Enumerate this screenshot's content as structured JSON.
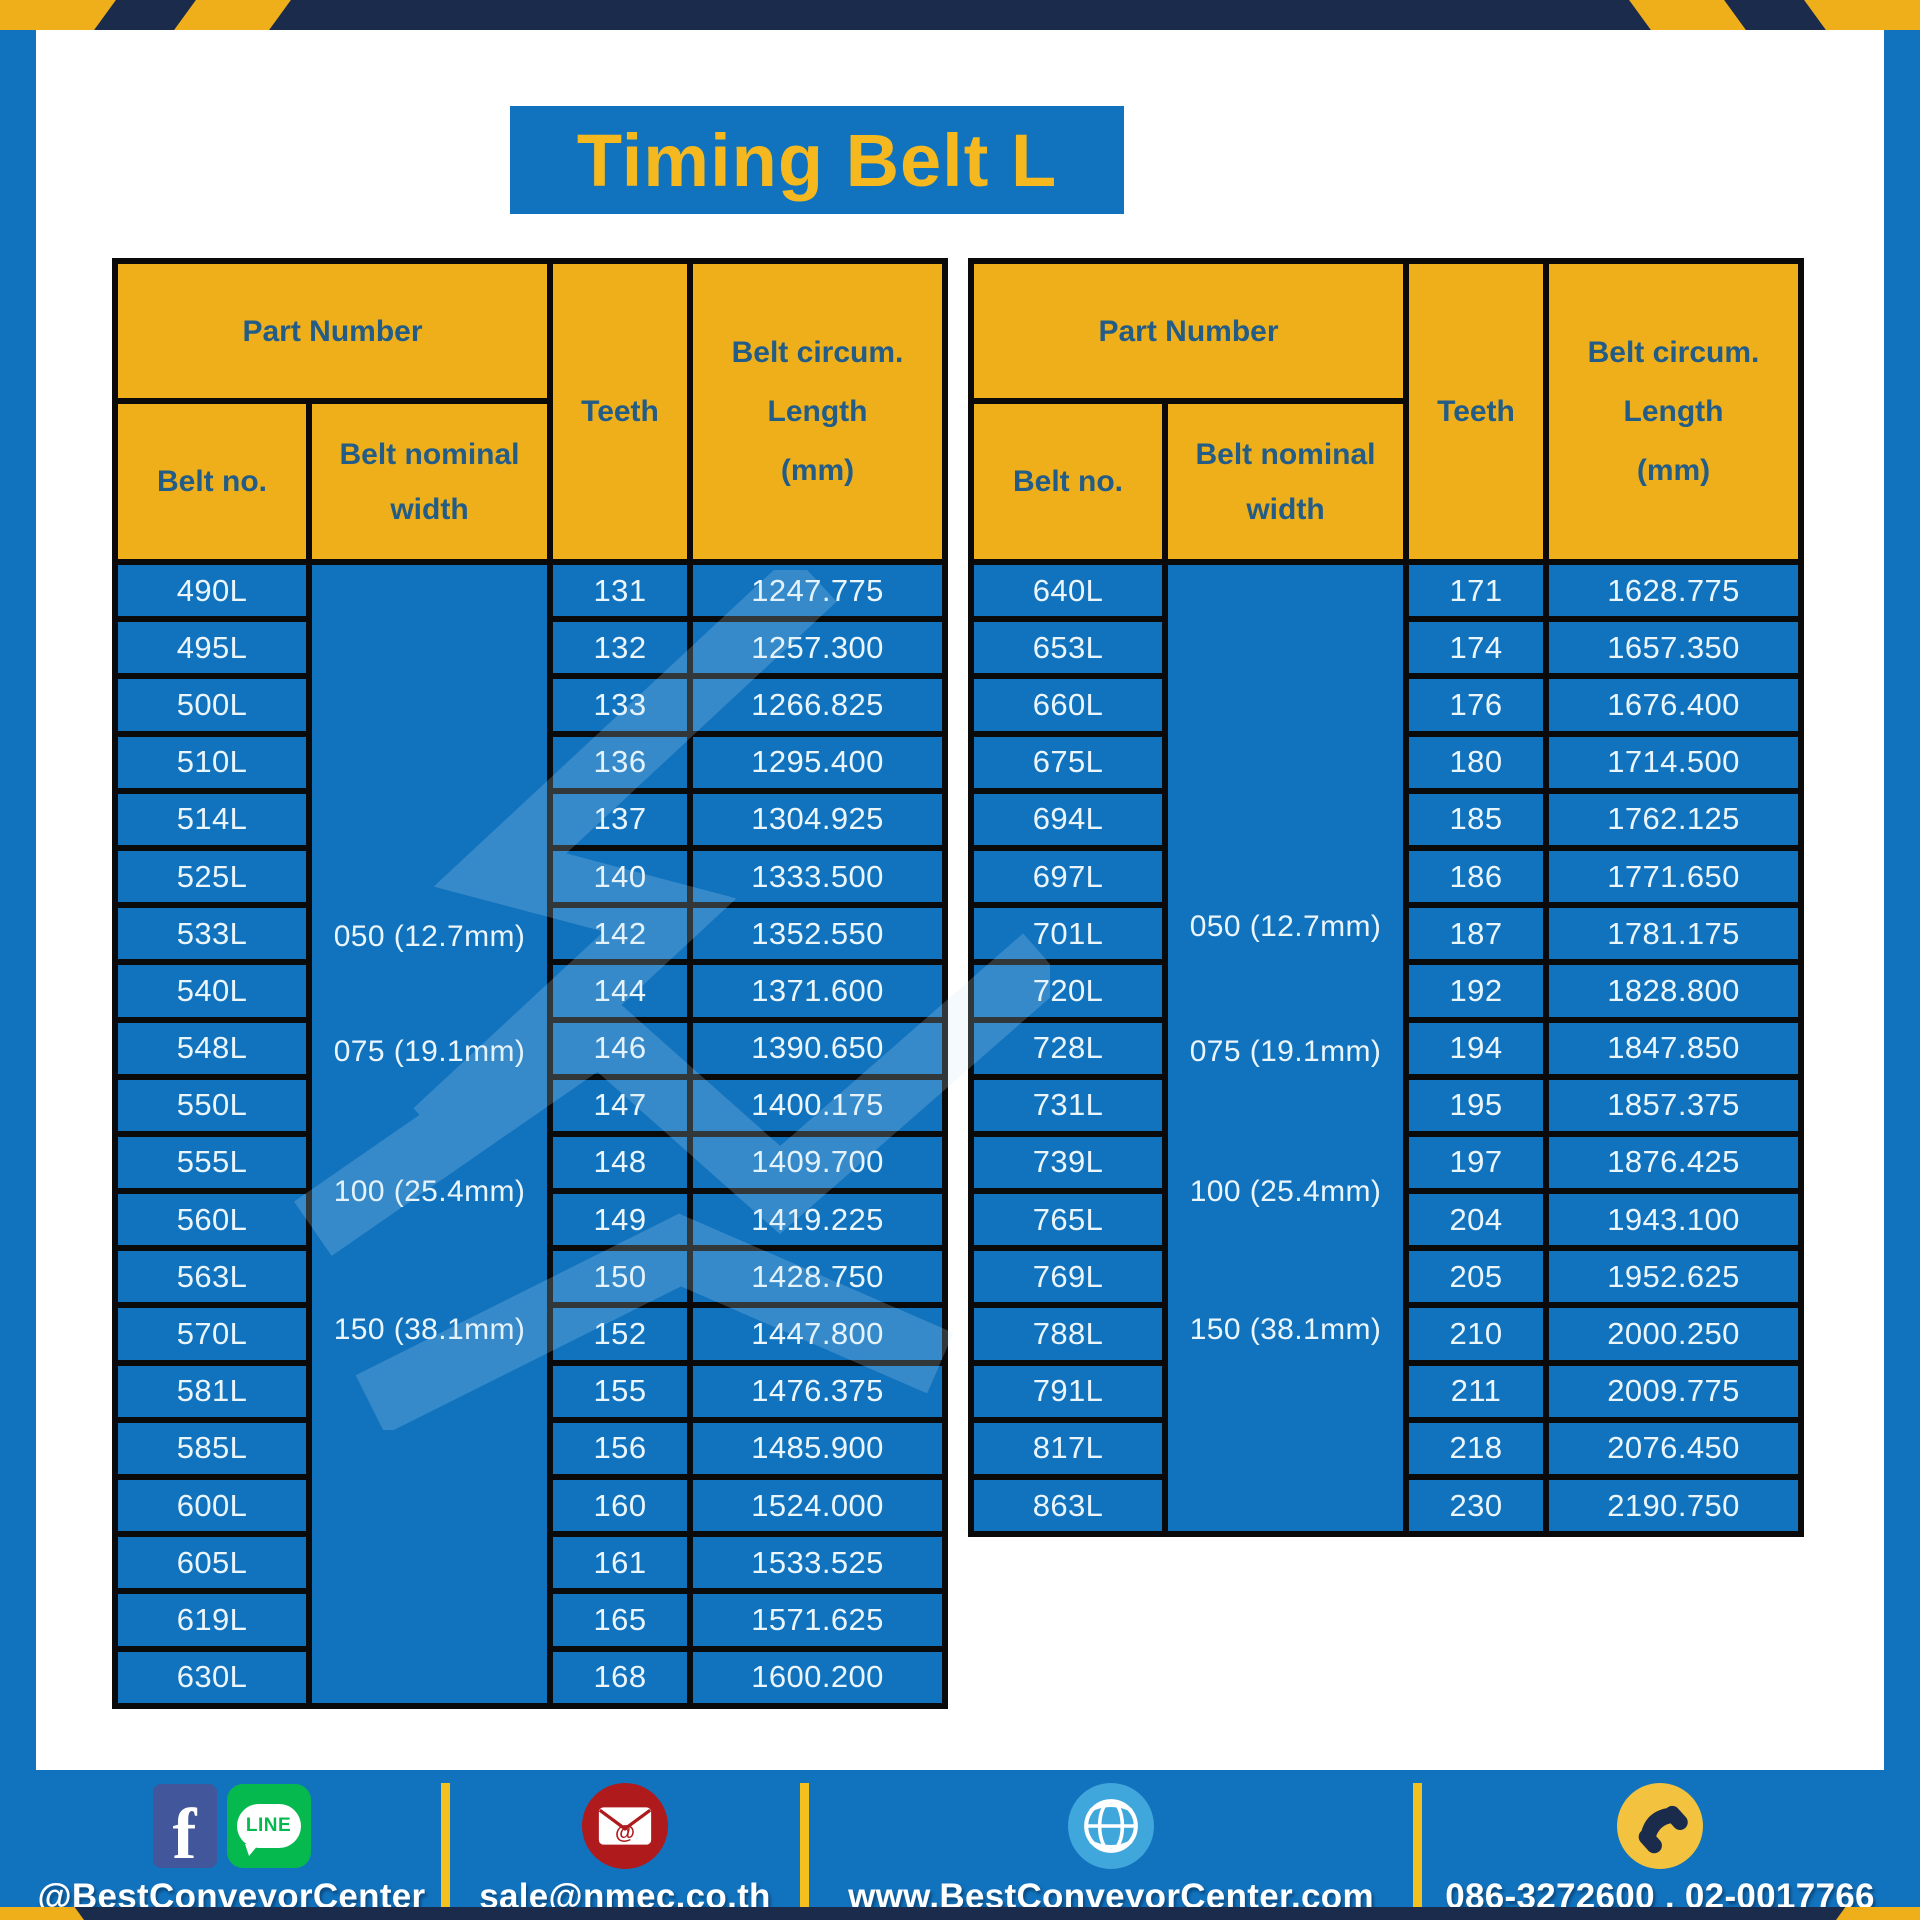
{
  "title": "Timing Belt L",
  "colors": {
    "blue": "#1173BE",
    "yellow": "#EFAF1B",
    "navy": "#1B2B4B",
    "header_text": "#235C86",
    "cell_text": "#EAF5FC",
    "facebook_blue": "#41569B",
    "line_green": "#06B94E",
    "email_red": "#AF1A1D",
    "globe_blue": "#3FA7DC",
    "phone_yellow": "#F3C23E"
  },
  "header": {
    "part_number": "Part Number",
    "belt_no": "Belt no.",
    "width_line1": "Belt nominal",
    "width_line2": "width",
    "teeth": "Teeth",
    "circ_line1": "Belt circum.",
    "circ_line2": "Length",
    "circ_line3": "(mm)"
  },
  "tables": [
    {
      "name": "left",
      "widths": [
        "050 (12.7mm)",
        "075 (19.1mm)",
        "100 (25.4mm)",
        "150 (38.1mm)"
      ],
      "rows": [
        [
          "490L",
          "131",
          "1247.775"
        ],
        [
          "495L",
          "132",
          "1257.300"
        ],
        [
          "500L",
          "133",
          "1266.825"
        ],
        [
          "510L",
          "136",
          "1295.400"
        ],
        [
          "514L",
          "137",
          "1304.925"
        ],
        [
          "525L",
          "140",
          "1333.500"
        ],
        [
          "533L",
          "142",
          "1352.550"
        ],
        [
          "540L",
          "144",
          "1371.600"
        ],
        [
          "548L",
          "146",
          "1390.650"
        ],
        [
          "550L",
          "147",
          "1400.175"
        ],
        [
          "555L",
          "148",
          "1409.700"
        ],
        [
          "560L",
          "149",
          "1419.225"
        ],
        [
          "563L",
          "150",
          "1428.750"
        ],
        [
          "570L",
          "152",
          "1447.800"
        ],
        [
          "581L",
          "155",
          "1476.375"
        ],
        [
          "585L",
          "156",
          "1485.900"
        ],
        [
          "600L",
          "160",
          "1524.000"
        ],
        [
          "605L",
          "161",
          "1533.525"
        ],
        [
          "619L",
          "165",
          "1571.625"
        ],
        [
          "630L",
          "168",
          "1600.200"
        ]
      ]
    },
    {
      "name": "right",
      "widths": [
        "050 (12.7mm)",
        "075 (19.1mm)",
        "100 (25.4mm)",
        "150 (38.1mm)"
      ],
      "rows": [
        [
          "640L",
          "171",
          "1628.775"
        ],
        [
          "653L",
          "174",
          "1657.350"
        ],
        [
          "660L",
          "176",
          "1676.400"
        ],
        [
          "675L",
          "180",
          "1714.500"
        ],
        [
          "694L",
          "185",
          "1762.125"
        ],
        [
          "697L",
          "186",
          "1771.650"
        ],
        [
          "701L",
          "187",
          "1781.175"
        ],
        [
          "720L",
          "192",
          "1828.800"
        ],
        [
          "728L",
          "194",
          "1847.850"
        ],
        [
          "731L",
          "195",
          "1857.375"
        ],
        [
          "739L",
          "197",
          "1876.425"
        ],
        [
          "765L",
          "204",
          "1943.100"
        ],
        [
          "769L",
          "205",
          "1952.625"
        ],
        [
          "788L",
          "210",
          "2000.250"
        ],
        [
          "791L",
          "211",
          "2009.775"
        ],
        [
          "817L",
          "218",
          "2076.450"
        ],
        [
          "863L",
          "230",
          "2190.750"
        ]
      ]
    }
  ],
  "footer": {
    "facebook_letter": "f",
    "line_text": "LINE",
    "sections": [
      {
        "label": "@BestConveyorCenter"
      },
      {
        "label": "sale@nmec.co.th"
      },
      {
        "label": "www.BestConveyorCenter.com"
      },
      {
        "label": "086-3272600 , 02-0017766"
      }
    ]
  }
}
